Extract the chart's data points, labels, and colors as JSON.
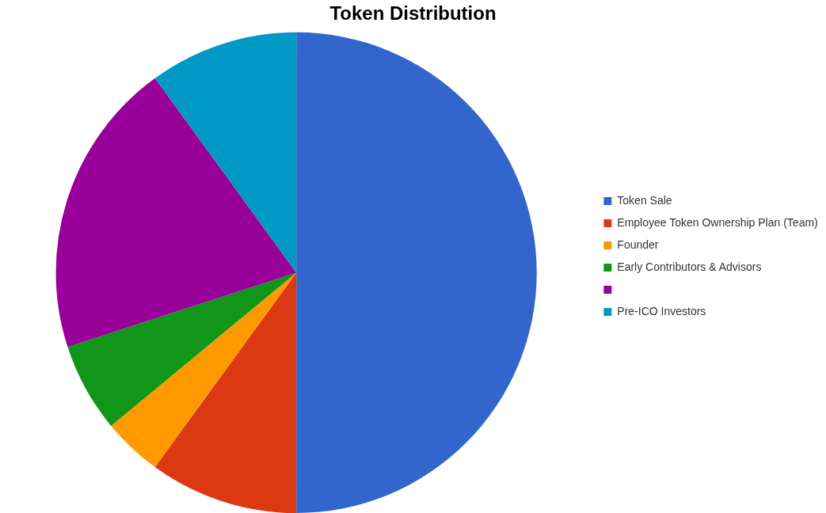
{
  "chart_data": {
    "type": "pie",
    "title": "Token Distribution",
    "categories": [
      "Token Sale",
      "Employee Token Ownership Plan (Team)",
      "Founder",
      "Early Contributors & Advisors",
      null,
      "Pre-ICO Investors"
    ],
    "values": [
      50,
      10,
      4,
      6,
      20,
      10
    ],
    "colors": [
      "#3366cc",
      "#dc3912",
      "#ff9900",
      "#109618",
      "#990099",
      "#0099c6"
    ],
    "legend": "right"
  }
}
